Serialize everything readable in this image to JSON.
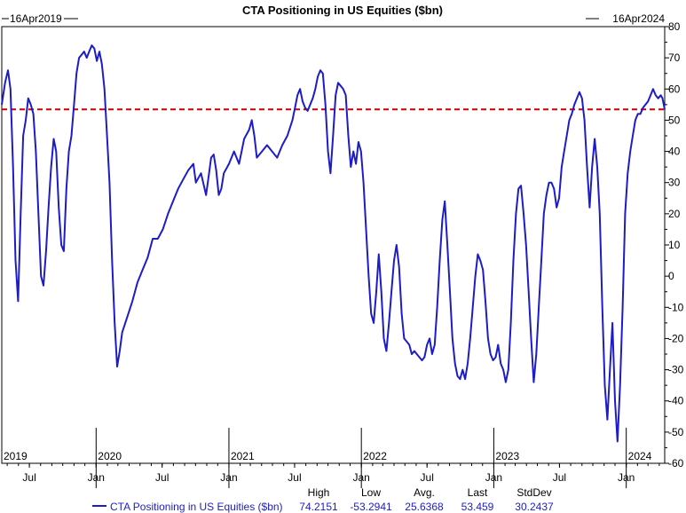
{
  "chart_data": {
    "type": "line",
    "title": "CTA Positioning in US Equities ($bn)",
    "start_label": "16Apr2019",
    "end_label": "16Apr2024",
    "colors": {
      "series": "#1c1cc8",
      "reference": "#cc0000",
      "text": "#000000"
    },
    "ylim": [
      -60,
      80
    ],
    "ytick_values": [
      80,
      70,
      60,
      50,
      40,
      30,
      20,
      10,
      0,
      -10,
      -20,
      -30,
      -40,
      -50,
      -60
    ],
    "y_right_axis": true,
    "grid": false,
    "xlim": [
      "2019-04-16",
      "2024-04-16"
    ],
    "year_ticks": [
      {
        "date": "2019-04-16",
        "label": "2019"
      },
      {
        "date": "2020-01-01",
        "label": "2020"
      },
      {
        "date": "2021-01-01",
        "label": "2021"
      },
      {
        "date": "2022-01-01",
        "label": "2022"
      },
      {
        "date": "2023-01-01",
        "label": "2023"
      },
      {
        "date": "2024-01-01",
        "label": "2024"
      }
    ],
    "month_ticks": [
      {
        "date": "2019-07-01",
        "label": "Jul"
      },
      {
        "date": "2020-01-01",
        "label": "Jan"
      },
      {
        "date": "2020-07-01",
        "label": "Jul"
      },
      {
        "date": "2021-01-01",
        "label": "Jan"
      },
      {
        "date": "2021-07-01",
        "label": "Jul"
      },
      {
        "date": "2022-01-01",
        "label": "Jan"
      },
      {
        "date": "2022-07-01",
        "label": "Jul"
      },
      {
        "date": "2023-01-01",
        "label": "Jan"
      },
      {
        "date": "2023-07-01",
        "label": "Jul"
      },
      {
        "date": "2024-01-01",
        "label": "Jan"
      }
    ],
    "reference_line": {
      "value": 53.459,
      "style": "dashed"
    },
    "series": [
      {
        "name": "CTA Positioning in US Equities ($bn)",
        "points": [
          [
            "2019-04-16",
            55
          ],
          [
            "2019-04-25",
            62
          ],
          [
            "2019-05-03",
            66
          ],
          [
            "2019-05-10",
            60
          ],
          [
            "2019-05-17",
            35
          ],
          [
            "2019-05-24",
            5
          ],
          [
            "2019-05-31",
            -8
          ],
          [
            "2019-06-07",
            20
          ],
          [
            "2019-06-14",
            45
          ],
          [
            "2019-06-21",
            50
          ],
          [
            "2019-06-28",
            57
          ],
          [
            "2019-07-05",
            55
          ],
          [
            "2019-07-12",
            52
          ],
          [
            "2019-07-19",
            40
          ],
          [
            "2019-07-26",
            20
          ],
          [
            "2019-08-02",
            0
          ],
          [
            "2019-08-09",
            -3
          ],
          [
            "2019-08-16",
            8
          ],
          [
            "2019-08-23",
            22
          ],
          [
            "2019-08-30",
            35
          ],
          [
            "2019-09-06",
            44
          ],
          [
            "2019-09-13",
            40
          ],
          [
            "2019-09-20",
            22
          ],
          [
            "2019-09-27",
            10
          ],
          [
            "2019-10-04",
            8
          ],
          [
            "2019-10-11",
            28
          ],
          [
            "2019-10-18",
            40
          ],
          [
            "2019-10-25",
            45
          ],
          [
            "2019-11-01",
            55
          ],
          [
            "2019-11-08",
            65
          ],
          [
            "2019-11-15",
            70
          ],
          [
            "2019-11-22",
            71
          ],
          [
            "2019-11-29",
            72
          ],
          [
            "2019-12-06",
            70
          ],
          [
            "2019-12-13",
            72
          ],
          [
            "2019-12-20",
            74
          ],
          [
            "2019-12-27",
            73
          ],
          [
            "2020-01-03",
            69
          ],
          [
            "2020-01-10",
            72
          ],
          [
            "2020-01-17",
            68
          ],
          [
            "2020-01-24",
            60
          ],
          [
            "2020-01-31",
            45
          ],
          [
            "2020-02-07",
            30
          ],
          [
            "2020-02-14",
            5
          ],
          [
            "2020-02-21",
            -15
          ],
          [
            "2020-02-28",
            -29
          ],
          [
            "2020-03-06",
            -24
          ],
          [
            "2020-03-13",
            -18
          ],
          [
            "2020-03-27",
            -13
          ],
          [
            "2020-04-10",
            -8
          ],
          [
            "2020-04-24",
            -2
          ],
          [
            "2020-05-08",
            2
          ],
          [
            "2020-05-22",
            6
          ],
          [
            "2020-06-05",
            12
          ],
          [
            "2020-06-19",
            12
          ],
          [
            "2020-07-03",
            15
          ],
          [
            "2020-07-17",
            20
          ],
          [
            "2020-07-31",
            24
          ],
          [
            "2020-08-14",
            28
          ],
          [
            "2020-08-28",
            31
          ],
          [
            "2020-09-11",
            34
          ],
          [
            "2020-09-25",
            36
          ],
          [
            "2020-10-02",
            30
          ],
          [
            "2020-10-16",
            33
          ],
          [
            "2020-10-30",
            26
          ],
          [
            "2020-11-06",
            32
          ],
          [
            "2020-11-13",
            38
          ],
          [
            "2020-11-20",
            39
          ],
          [
            "2020-11-27",
            34
          ],
          [
            "2020-12-04",
            26
          ],
          [
            "2020-12-11",
            28
          ],
          [
            "2020-12-18",
            33
          ],
          [
            "2021-01-01",
            36
          ],
          [
            "2021-01-15",
            40
          ],
          [
            "2021-01-29",
            36
          ],
          [
            "2021-02-12",
            44
          ],
          [
            "2021-02-26",
            47
          ],
          [
            "2021-03-05",
            50
          ],
          [
            "2021-03-12",
            45
          ],
          [
            "2021-03-19",
            38
          ],
          [
            "2021-04-02",
            40
          ],
          [
            "2021-04-16",
            42
          ],
          [
            "2021-04-30",
            40
          ],
          [
            "2021-05-14",
            38
          ],
          [
            "2021-05-28",
            42
          ],
          [
            "2021-06-11",
            45
          ],
          [
            "2021-06-25",
            50
          ],
          [
            "2021-07-02",
            54
          ],
          [
            "2021-07-09",
            58
          ],
          [
            "2021-07-16",
            60
          ],
          [
            "2021-07-23",
            56
          ],
          [
            "2021-07-30",
            54
          ],
          [
            "2021-08-06",
            53
          ],
          [
            "2021-08-13",
            55
          ],
          [
            "2021-08-20",
            57
          ],
          [
            "2021-08-27",
            60
          ],
          [
            "2021-09-03",
            64
          ],
          [
            "2021-09-10",
            66
          ],
          [
            "2021-09-17",
            65
          ],
          [
            "2021-09-24",
            55
          ],
          [
            "2021-10-01",
            40
          ],
          [
            "2021-10-08",
            33
          ],
          [
            "2021-10-15",
            45
          ],
          [
            "2021-10-22",
            58
          ],
          [
            "2021-10-29",
            62
          ],
          [
            "2021-11-05",
            61
          ],
          [
            "2021-11-12",
            60
          ],
          [
            "2021-11-19",
            58
          ],
          [
            "2021-11-26",
            45
          ],
          [
            "2021-12-03",
            35
          ],
          [
            "2021-12-10",
            40
          ],
          [
            "2021-12-17",
            36
          ],
          [
            "2021-12-24",
            43
          ],
          [
            "2021-12-31",
            40
          ],
          [
            "2022-01-07",
            30
          ],
          [
            "2022-01-14",
            15
          ],
          [
            "2022-01-21",
            0
          ],
          [
            "2022-01-28",
            -12
          ],
          [
            "2022-02-04",
            -15
          ],
          [
            "2022-02-11",
            -5
          ],
          [
            "2022-02-18",
            7
          ],
          [
            "2022-02-25",
            -5
          ],
          [
            "2022-03-04",
            -20
          ],
          [
            "2022-03-11",
            -24
          ],
          [
            "2022-03-18",
            -15
          ],
          [
            "2022-03-25",
            -5
          ],
          [
            "2022-04-01",
            5
          ],
          [
            "2022-04-08",
            10
          ],
          [
            "2022-04-15",
            3
          ],
          [
            "2022-04-22",
            -12
          ],
          [
            "2022-04-29",
            -20
          ],
          [
            "2022-05-06",
            -21
          ],
          [
            "2022-05-13",
            -22
          ],
          [
            "2022-05-20",
            -25
          ],
          [
            "2022-05-27",
            -24
          ],
          [
            "2022-06-03",
            -25
          ],
          [
            "2022-06-10",
            -26
          ],
          [
            "2022-06-17",
            -27
          ],
          [
            "2022-06-24",
            -26
          ],
          [
            "2022-07-01",
            -22
          ],
          [
            "2022-07-08",
            -20
          ],
          [
            "2022-07-15",
            -25
          ],
          [
            "2022-07-22",
            -22
          ],
          [
            "2022-07-29",
            -10
          ],
          [
            "2022-08-05",
            5
          ],
          [
            "2022-08-12",
            18
          ],
          [
            "2022-08-19",
            24
          ],
          [
            "2022-08-26",
            10
          ],
          [
            "2022-09-02",
            -5
          ],
          [
            "2022-09-09",
            -20
          ],
          [
            "2022-09-16",
            -28
          ],
          [
            "2022-09-23",
            -32
          ],
          [
            "2022-09-30",
            -33
          ],
          [
            "2022-10-07",
            -30
          ],
          [
            "2022-10-14",
            -33
          ],
          [
            "2022-10-21",
            -28
          ],
          [
            "2022-10-28",
            -20
          ],
          [
            "2022-11-04",
            -10
          ],
          [
            "2022-11-11",
            0
          ],
          [
            "2022-11-18",
            7
          ],
          [
            "2022-11-25",
            5
          ],
          [
            "2022-12-02",
            2
          ],
          [
            "2022-12-09",
            -8
          ],
          [
            "2022-12-16",
            -20
          ],
          [
            "2022-12-23",
            -25
          ],
          [
            "2022-12-30",
            -27
          ],
          [
            "2023-01-06",
            -26
          ],
          [
            "2023-01-13",
            -22
          ],
          [
            "2023-01-20",
            -28
          ],
          [
            "2023-01-27",
            -30
          ],
          [
            "2023-02-03",
            -34
          ],
          [
            "2023-02-10",
            -30
          ],
          [
            "2023-02-17",
            -15
          ],
          [
            "2023-02-24",
            5
          ],
          [
            "2023-03-03",
            20
          ],
          [
            "2023-03-10",
            28
          ],
          [
            "2023-03-17",
            29
          ],
          [
            "2023-03-24",
            20
          ],
          [
            "2023-03-31",
            10
          ],
          [
            "2023-04-07",
            -5
          ],
          [
            "2023-04-14",
            -20
          ],
          [
            "2023-04-21",
            -34
          ],
          [
            "2023-04-28",
            -25
          ],
          [
            "2023-05-05",
            -10
          ],
          [
            "2023-05-12",
            5
          ],
          [
            "2023-05-19",
            20
          ],
          [
            "2023-05-26",
            26
          ],
          [
            "2023-06-02",
            30
          ],
          [
            "2023-06-09",
            30
          ],
          [
            "2023-06-16",
            28
          ],
          [
            "2023-06-23",
            22
          ],
          [
            "2023-06-30",
            25
          ],
          [
            "2023-07-07",
            35
          ],
          [
            "2023-07-14",
            40
          ],
          [
            "2023-07-21",
            45
          ],
          [
            "2023-07-28",
            50
          ],
          [
            "2023-08-04",
            52
          ],
          [
            "2023-08-11",
            55
          ],
          [
            "2023-08-18",
            57
          ],
          [
            "2023-08-25",
            59
          ],
          [
            "2023-09-01",
            57
          ],
          [
            "2023-09-08",
            50
          ],
          [
            "2023-09-15",
            35
          ],
          [
            "2023-09-22",
            22
          ],
          [
            "2023-09-29",
            35
          ],
          [
            "2023-10-06",
            44
          ],
          [
            "2023-10-13",
            35
          ],
          [
            "2023-10-20",
            20
          ],
          [
            "2023-10-27",
            -10
          ],
          [
            "2023-11-03",
            -35
          ],
          [
            "2023-11-10",
            -46
          ],
          [
            "2023-11-17",
            -30
          ],
          [
            "2023-11-24",
            -15
          ],
          [
            "2023-12-01",
            -40
          ],
          [
            "2023-12-08",
            -53
          ],
          [
            "2023-12-15",
            -35
          ],
          [
            "2023-12-22",
            -10
          ],
          [
            "2023-12-29",
            20
          ],
          [
            "2024-01-05",
            33
          ],
          [
            "2024-01-12",
            40
          ],
          [
            "2024-01-19",
            45
          ],
          [
            "2024-01-26",
            50
          ],
          [
            "2024-02-02",
            52
          ],
          [
            "2024-02-09",
            52
          ],
          [
            "2024-02-16",
            54
          ],
          [
            "2024-02-23",
            55
          ],
          [
            "2024-03-01",
            56
          ],
          [
            "2024-03-08",
            58
          ],
          [
            "2024-03-15",
            60
          ],
          [
            "2024-03-22",
            58
          ],
          [
            "2024-03-29",
            57
          ],
          [
            "2024-04-05",
            58
          ],
          [
            "2024-04-10",
            57
          ],
          [
            "2024-04-16",
            53.459
          ]
        ]
      }
    ],
    "legend": {
      "position": "bottom",
      "label": "CTA Positioning in US Equities ($bn)",
      "stats": [
        {
          "header": "High",
          "value": "74.2151"
        },
        {
          "header": "Low",
          "value": "-53.2941"
        },
        {
          "header": "Avg.",
          "value": "25.6368"
        },
        {
          "header": "Last",
          "value": "53.459"
        },
        {
          "header": "StdDev",
          "value": "30.2437"
        }
      ]
    }
  }
}
